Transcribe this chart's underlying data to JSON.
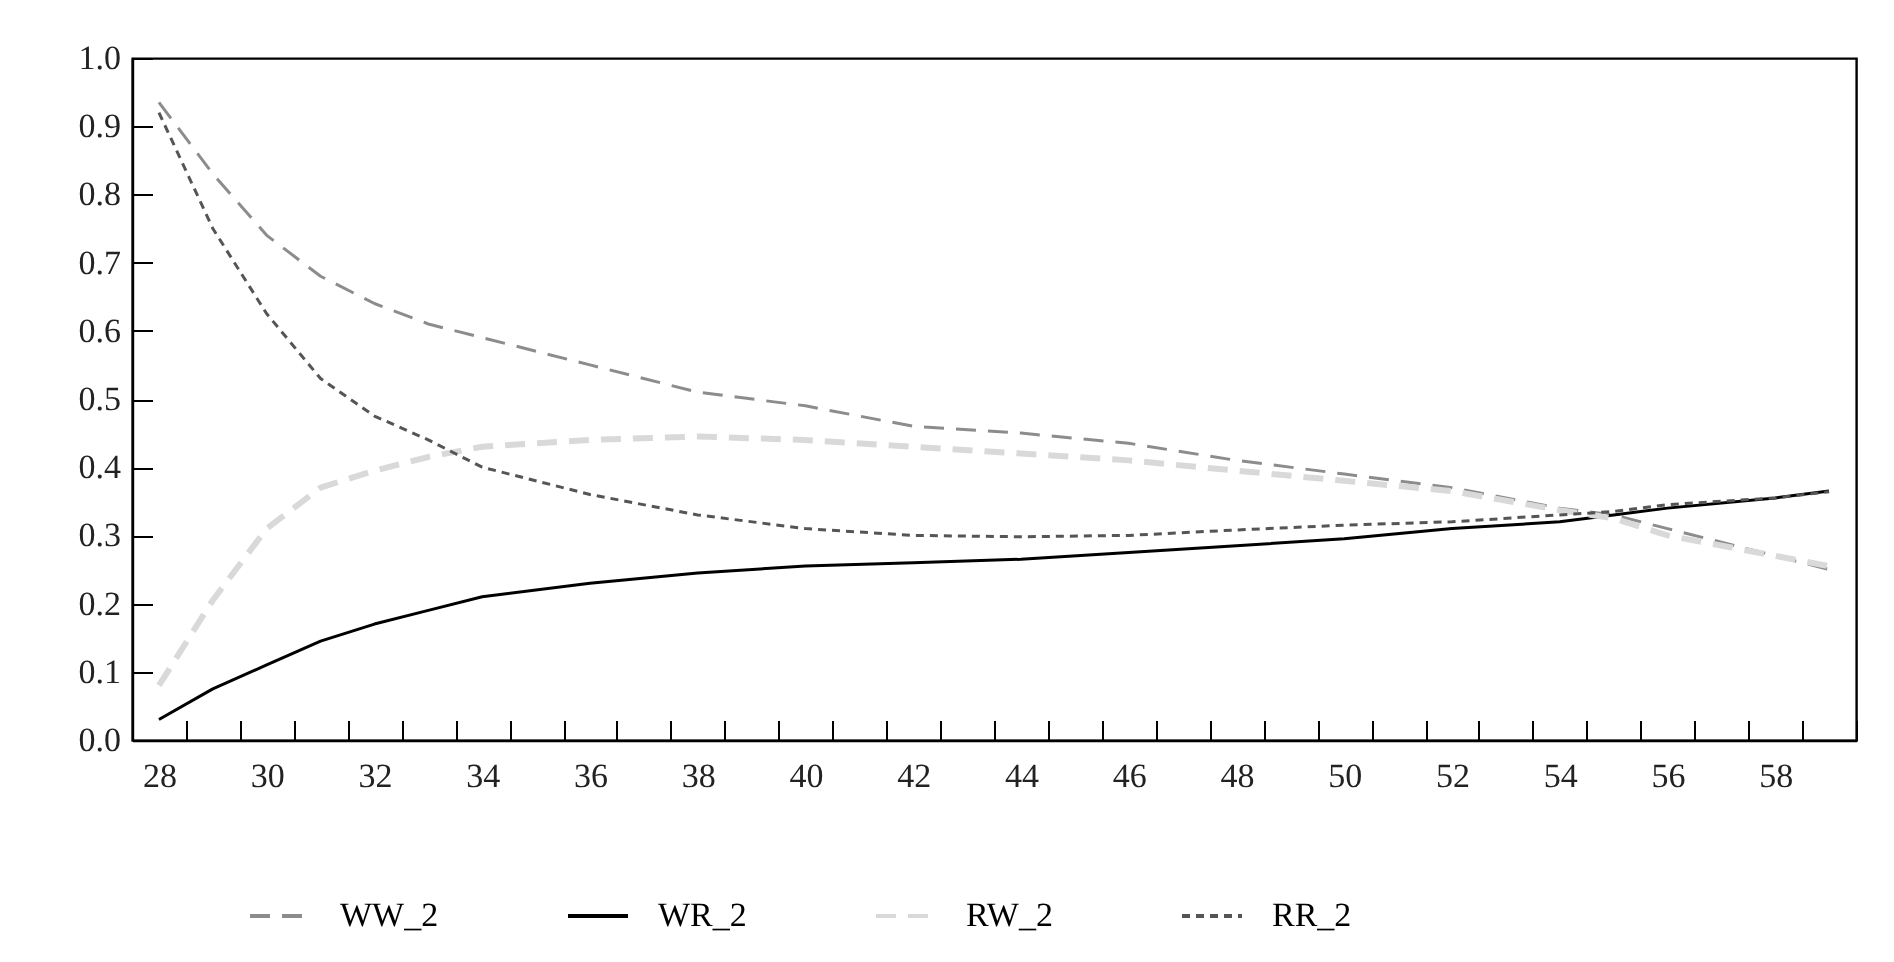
{
  "chart_data": {
    "type": "line",
    "x": [
      28,
      29,
      30,
      31,
      32,
      33,
      34,
      36,
      38,
      40,
      42,
      44,
      46,
      48,
      50,
      52,
      54,
      55,
      56,
      58,
      59
    ],
    "xlim": [
      27.5,
      59.5
    ],
    "xticks": [
      28,
      30,
      32,
      34,
      36,
      38,
      40,
      42,
      44,
      46,
      48,
      50,
      52,
      54,
      56,
      58,
      {
        "value": 28.5,
        "label": null
      },
      {
        "value": 29.5,
        "label": null
      },
      {
        "value": 30.5,
        "label": null
      },
      {
        "value": 31.5,
        "label": null
      },
      {
        "value": 32.5,
        "label": null
      },
      {
        "value": 33.5,
        "label": null
      },
      {
        "value": 34.5,
        "label": null
      },
      {
        "value": 35.5,
        "label": null
      },
      {
        "value": 36.5,
        "label": null
      },
      {
        "value": 37.5,
        "label": null
      },
      {
        "value": 38.5,
        "label": null
      },
      {
        "value": 39.5,
        "label": null
      },
      {
        "value": 40.5,
        "label": null
      },
      {
        "value": 41.5,
        "label": null
      },
      {
        "value": 42.5,
        "label": null
      },
      {
        "value": 43.5,
        "label": null
      },
      {
        "value": 44.5,
        "label": null
      },
      {
        "value": 45.5,
        "label": null
      },
      {
        "value": 46.5,
        "label": null
      },
      {
        "value": 47.5,
        "label": null
      },
      {
        "value": 48.5,
        "label": null
      },
      {
        "value": 49.5,
        "label": null
      },
      {
        "value": 50.5,
        "label": null
      },
      {
        "value": 51.5,
        "label": null
      },
      {
        "value": 52.5,
        "label": null
      },
      {
        "value": 53.5,
        "label": null
      },
      {
        "value": 54.5,
        "label": null
      },
      {
        "value": 55.5,
        "label": null
      },
      {
        "value": 56.5,
        "label": null
      },
      {
        "value": 57.5,
        "label": null
      },
      {
        "value": 58.5,
        "label": null
      },
      {
        "value": 59.5,
        "label": null
      }
    ],
    "ylim": [
      0,
      1
    ],
    "yticks": [
      {
        "value": 0,
        "label": "0.0"
      },
      {
        "value": 0.1,
        "label": "0.1"
      },
      {
        "value": 0.2,
        "label": "0.2"
      },
      {
        "value": 0.3,
        "label": "0.3"
      },
      {
        "value": 0.4,
        "label": "0.4"
      },
      {
        "value": 0.5,
        "label": "0.5"
      },
      {
        "value": 0.6,
        "label": "0.6"
      },
      {
        "value": 0.7,
        "label": "0.7"
      },
      {
        "value": 0.8,
        "label": "0.8"
      },
      {
        "value": 0.9,
        "label": "0.9"
      },
      {
        "value": 1,
        "label": "1.0"
      }
    ],
    "grid": false,
    "legend": "bottom",
    "series": [
      {
        "name": "WW_2",
        "color": "#8c8c8c",
        "line_style": "dashed",
        "values": [
          0.935,
          0.83,
          0.74,
          0.68,
          0.64,
          0.61,
          0.59,
          0.55,
          0.51,
          0.49,
          0.46,
          0.45,
          0.435,
          0.41,
          0.39,
          0.37,
          0.34,
          0.33,
          0.31,
          0.27,
          0.25
        ]
      },
      {
        "name": "WR_2",
        "color": "#000000",
        "line_style": "solid",
        "values": [
          0.03,
          0.075,
          0.11,
          0.145,
          0.17,
          0.19,
          0.21,
          0.23,
          0.245,
          0.255,
          0.26,
          0.265,
          0.275,
          0.285,
          0.295,
          0.31,
          0.32,
          0.33,
          0.34,
          0.355,
          0.365
        ]
      },
      {
        "name": "RW_2",
        "color": "#d9d9d9",
        "line_style": "dashed",
        "values": [
          0.08,
          0.205,
          0.31,
          0.37,
          0.395,
          0.415,
          0.43,
          0.44,
          0.445,
          0.44,
          0.43,
          0.42,
          0.41,
          0.395,
          0.38,
          0.365,
          0.337,
          0.325,
          0.3,
          0.27,
          0.255
        ]
      },
      {
        "name": "RR_2",
        "color": "#555555",
        "line_style": "dotted",
        "values": [
          0.92,
          0.75,
          0.625,
          0.53,
          0.475,
          0.44,
          0.4,
          0.36,
          0.33,
          0.31,
          0.3,
          0.298,
          0.3,
          0.308,
          0.315,
          0.32,
          0.33,
          0.335,
          0.345,
          0.355,
          0.364
        ]
      }
    ]
  }
}
